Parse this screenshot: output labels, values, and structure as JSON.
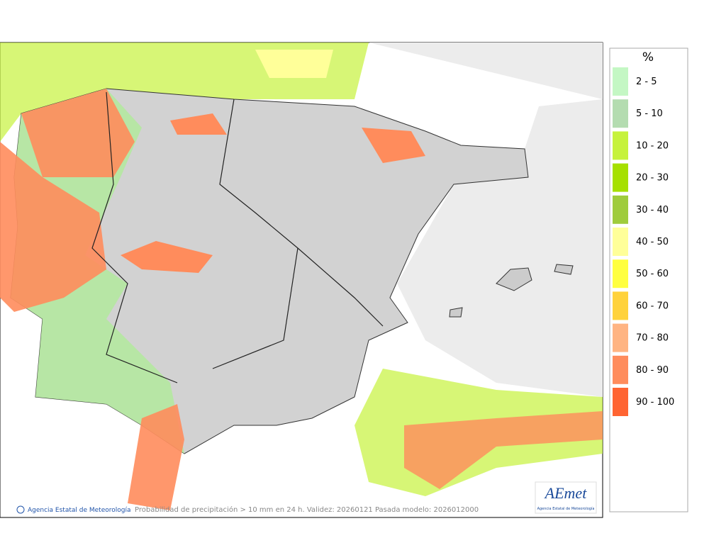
{
  "legend": {
    "title": "%",
    "items": [
      {
        "label": "2 - 5",
        "color": "#c4f7c4"
      },
      {
        "label": "5 - 10",
        "color": "#b4dcb0"
      },
      {
        "label": "10 - 20",
        "color": "#c6f23c"
      },
      {
        "label": "20 - 30",
        "color": "#a6e000"
      },
      {
        "label": "30 - 40",
        "color": "#9fcc3c"
      },
      {
        "label": "40 - 50",
        "color": "#ffff99"
      },
      {
        "label": "50 - 60",
        "color": "#ffff40"
      },
      {
        "label": "60 - 70",
        "color": "#ffd23c"
      },
      {
        "label": "70 - 80",
        "color": "#ffb482"
      },
      {
        "label": "80 - 90",
        "color": "#ff8c5c"
      },
      {
        "label": "90 - 100",
        "color": "#ff6432"
      }
    ]
  },
  "footer": {
    "agency": "Agencia Estatal de Meteorología",
    "caption": "Probabilidad de precipitación > 10 mm en 24 h. Validez: 20260121 Pasada modelo: 2026012000"
  },
  "logo": {
    "name": "AEmet",
    "subtitle": "Agencia Estatal de Meteorología"
  }
}
